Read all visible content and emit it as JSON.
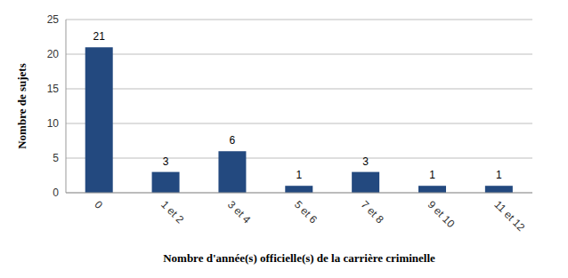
{
  "chart_data": {
    "type": "bar",
    "categories": [
      "0",
      "1 et 2",
      "3 et 4",
      "5 et 6",
      "7 et 8",
      "9 et 10",
      "11 et 12"
    ],
    "values": [
      21,
      3,
      6,
      1,
      3,
      1,
      1
    ],
    "color": "#23497f",
    "x_label": "Nombre d'année(s) officielle(s) de la carrière criminelle",
    "y_label": "Nombre de sujets",
    "ylim": [
      0,
      25
    ],
    "yticks": [
      0,
      5,
      10,
      15,
      20,
      25
    ],
    "grid": true,
    "data_labels": true
  }
}
